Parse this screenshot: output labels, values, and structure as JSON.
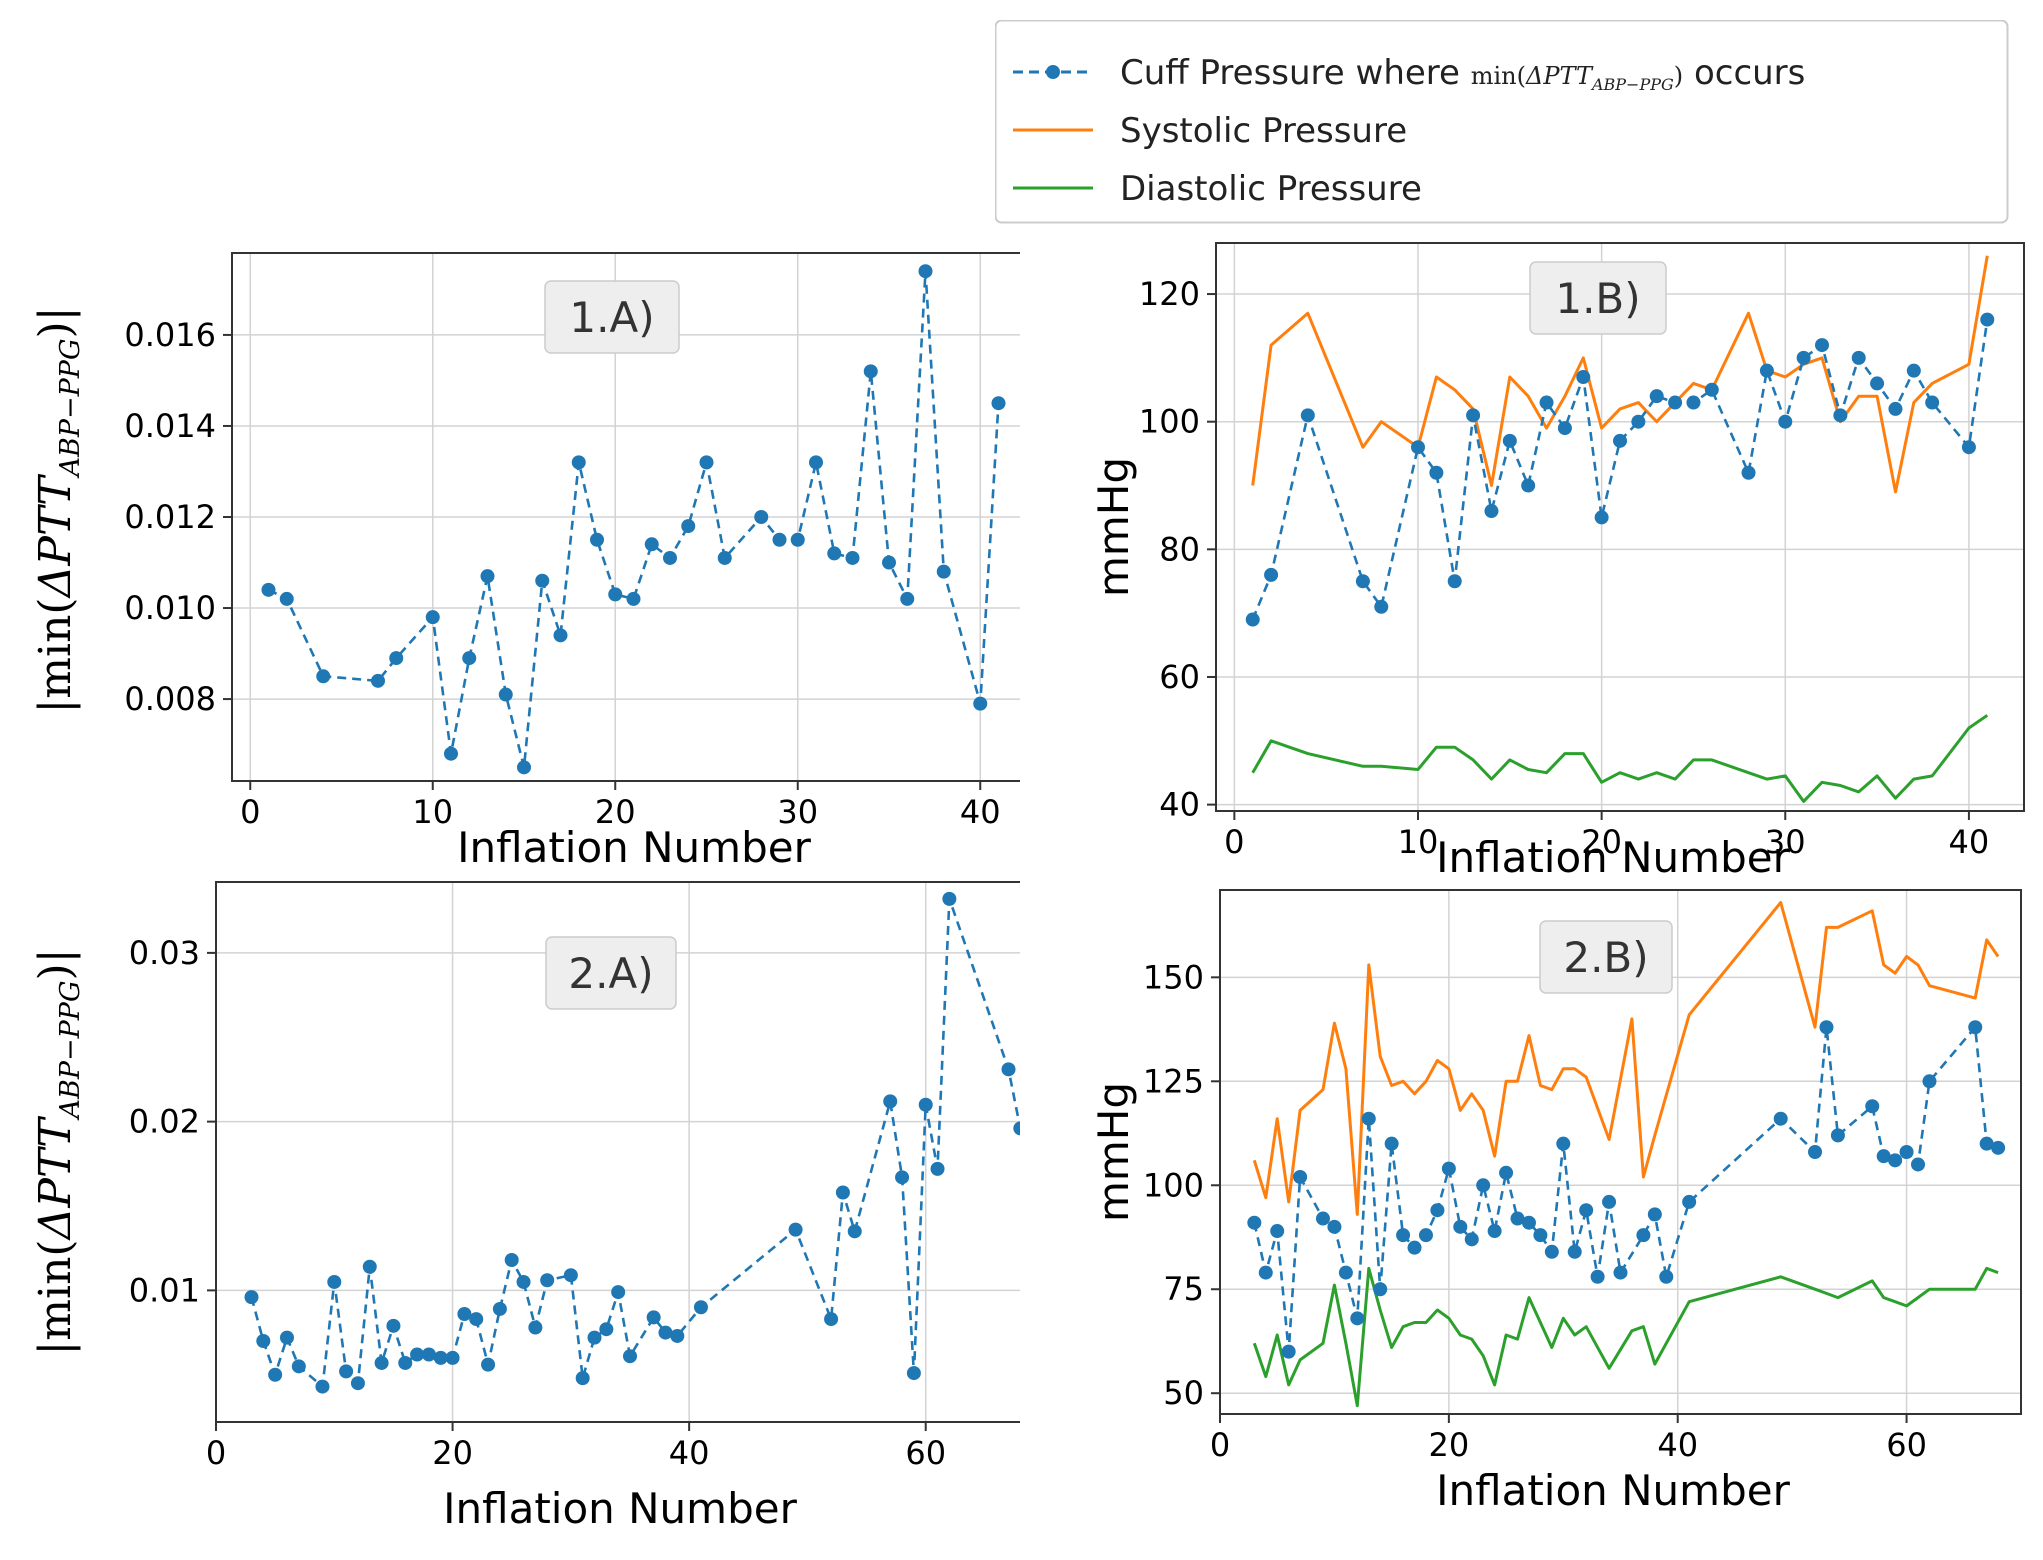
{
  "legend": {
    "cuff_prefix": "Cuff Pressure where ",
    "cuff_math": {
      "fn": "min(",
      "symbol": "ΔPTT",
      "sub": "ABP−PPG",
      "close": ")"
    },
    "cuff_suffix": " occurs",
    "systolic": "Systolic Pressure",
    "diastolic": "Diastolic Pressure"
  },
  "colors": {
    "cuff": "#1f77b4",
    "systolic": "#ff7f0e",
    "diastolic": "#2ca02c",
    "grid": "#d3d3d3",
    "axis": "#333333",
    "label_box": "#eeeeee"
  },
  "chart_data": [
    {
      "id": "1A",
      "type": "line",
      "panel_label": "1.A)",
      "xlabel": "Inflation Number",
      "ylabel": {
        "pre": "|min(",
        "symbol": "ΔPTT",
        "sub": "ABP−PPG",
        "post": ")|"
      },
      "xlim": [
        -1,
        43
      ],
      "ylim": [
        0.0062,
        0.0178
      ],
      "xticks": [
        0,
        10,
        20,
        30,
        40
      ],
      "xtick_labels": [
        "0",
        "10",
        "20",
        "30",
        "40"
      ],
      "yticks": [
        0.008,
        0.01,
        0.012,
        0.014,
        0.016
      ],
      "ytick_labels": [
        "0.008",
        "0.010",
        "0.012",
        "0.014",
        "0.016"
      ],
      "series": [
        {
          "name": "Cuff Pressure where min(ΔPTT_ABP−PPG) occurs",
          "style": "dashed-markers",
          "color_key": "cuff",
          "x": [
            1,
            2,
            4,
            7,
            8,
            10,
            11,
            12,
            13,
            14,
            15,
            16,
            17,
            18,
            19,
            20,
            21,
            22,
            23,
            24,
            25,
            26,
            28,
            29,
            30,
            31,
            32,
            33,
            34,
            35,
            36,
            37,
            38,
            40,
            41
          ],
          "y": [
            0.0104,
            0.0102,
            0.0085,
            0.0084,
            0.0089,
            0.0098,
            0.0068,
            0.0089,
            0.0107,
            0.0081,
            0.0065,
            0.0106,
            0.0094,
            0.0132,
            0.0115,
            0.0103,
            0.0102,
            0.0114,
            0.0111,
            0.0118,
            0.0132,
            0.0111,
            0.012,
            0.0115,
            0.0115,
            0.0132,
            0.0112,
            0.0111,
            0.0152,
            0.011,
            0.0102,
            0.0174,
            0.0108,
            0.0079,
            0.0145
          ]
        }
      ]
    },
    {
      "id": "1B",
      "type": "line",
      "panel_label": "1.B)",
      "xlabel": "Inflation Number",
      "ylabel_text": "mmHg",
      "xlim": [
        -1,
        43
      ],
      "ylim": [
        39,
        128
      ],
      "xticks": [
        0,
        10,
        20,
        30,
        40
      ],
      "xtick_labels": [
        "0",
        "10",
        "20",
        "30",
        "40"
      ],
      "yticks": [
        40,
        60,
        80,
        100,
        120
      ],
      "ytick_labels": [
        "40",
        "60",
        "80",
        "100",
        "120"
      ],
      "series": [
        {
          "name": "Systolic Pressure",
          "style": "solid",
          "color_key": "systolic",
          "x": [
            1,
            2,
            4,
            7,
            8,
            10,
            11,
            12,
            13,
            14,
            15,
            16,
            17,
            18,
            19,
            20,
            21,
            22,
            23,
            24,
            25,
            26,
            28,
            29,
            30,
            31,
            32,
            33,
            34,
            35,
            36,
            37,
            38,
            40,
            41
          ],
          "y": [
            90,
            112,
            117,
            96,
            100,
            96,
            107,
            105,
            102,
            90,
            107,
            104,
            99,
            104,
            110,
            99,
            102,
            103,
            100,
            103,
            106,
            105,
            117,
            108,
            107,
            109,
            110,
            100,
            104,
            104,
            89,
            103,
            106,
            109,
            126
          ]
        },
        {
          "name": "Diastolic Pressure",
          "style": "solid",
          "color_key": "diastolic",
          "x": [
            1,
            2,
            4,
            7,
            8,
            10,
            11,
            12,
            13,
            14,
            15,
            16,
            17,
            18,
            19,
            20,
            21,
            22,
            23,
            24,
            25,
            26,
            28,
            29,
            30,
            31,
            32,
            33,
            34,
            35,
            36,
            37,
            38,
            40,
            41
          ],
          "y": [
            45,
            50,
            48,
            46,
            46,
            45.5,
            49,
            49,
            47,
            44,
            47,
            45.5,
            45,
            48,
            48,
            43.5,
            45,
            44,
            45,
            44,
            47,
            47,
            45,
            44,
            44.5,
            40.5,
            43.5,
            43,
            42,
            44.5,
            41,
            44,
            44.5,
            52,
            54
          ]
        },
        {
          "name": "Cuff Pressure where min(ΔPTT_ABP−PPG) occurs",
          "style": "dashed-markers",
          "color_key": "cuff",
          "x": [
            1,
            2,
            4,
            7,
            8,
            10,
            11,
            12,
            13,
            14,
            15,
            16,
            17,
            18,
            19,
            20,
            21,
            22,
            23,
            24,
            25,
            26,
            28,
            29,
            30,
            31,
            32,
            33,
            34,
            35,
            36,
            37,
            38,
            40,
            41
          ],
          "y": [
            69,
            76,
            101,
            75,
            71,
            96,
            92,
            75,
            101,
            86,
            97,
            90,
            103,
            99,
            107,
            85,
            97,
            100,
            104,
            103,
            103,
            105,
            92,
            108,
            100,
            110,
            112,
            101,
            110,
            106,
            102,
            108,
            103,
            96,
            116
          ]
        }
      ]
    },
    {
      "id": "2A",
      "type": "line",
      "panel_label": "2.A)",
      "xlabel": "Inflation Number",
      "ylabel": {
        "pre": "|min(",
        "symbol": "ΔPTT",
        "sub": "ABP−PPG",
        "post": ")|"
      },
      "xlim": [
        0,
        70
      ],
      "ylim": [
        0.0022,
        0.0342
      ],
      "xticks": [
        0,
        20,
        40,
        60
      ],
      "xtick_labels": [
        "0",
        "20",
        "40",
        "60"
      ],
      "yticks": [
        0.01,
        0.02,
        0.03
      ],
      "ytick_labels": [
        "0.01",
        "0.02",
        "0.03"
      ],
      "series": [
        {
          "name": "Cuff Pressure where min(ΔPTT_ABP−PPG) occurs",
          "style": "dashed-markers",
          "color_key": "cuff",
          "x": [
            3,
            4,
            5,
            6,
            7,
            9,
            10,
            11,
            12,
            13,
            14,
            15,
            16,
            17,
            18,
            19,
            20,
            21,
            22,
            23,
            24,
            25,
            26,
            27,
            28,
            30,
            31,
            32,
            33,
            34,
            35,
            37,
            38,
            39,
            41,
            49,
            52,
            53,
            54,
            57,
            58,
            59,
            60,
            61,
            62,
            67,
            68
          ],
          "y": [
            0.0096,
            0.007,
            0.005,
            0.0072,
            0.0055,
            0.0043,
            0.0105,
            0.0052,
            0.0045,
            0.0114,
            0.0057,
            0.0079,
            0.0057,
            0.0062,
            0.0062,
            0.006,
            0.006,
            0.0086,
            0.0083,
            0.0056,
            0.0089,
            0.0118,
            0.0105,
            0.0078,
            0.0106,
            0.0109,
            0.0048,
            0.0072,
            0.0077,
            0.0099,
            0.0061,
            0.0084,
            0.0075,
            0.0073,
            0.009,
            0.0136,
            0.0083,
            0.0158,
            0.0135,
            0.0212,
            0.0167,
            0.0051,
            0.021,
            0.0172,
            0.0332,
            0.0231,
            0.0196
          ]
        }
      ]
    },
    {
      "id": "2B",
      "type": "line",
      "panel_label": "2.B)",
      "xlabel": "Inflation Number",
      "ylabel_text": "mmHg",
      "xlim": [
        0,
        70
      ],
      "ylim": [
        45,
        171
      ],
      "xticks": [
        0,
        20,
        40,
        60
      ],
      "xtick_labels": [
        "0",
        "20",
        "40",
        "60"
      ],
      "yticks": [
        50,
        75,
        100,
        125,
        150
      ],
      "ytick_labels": [
        "50",
        "75",
        "100",
        "125",
        "150"
      ],
      "series": [
        {
          "name": "Systolic Pressure",
          "style": "solid",
          "color_key": "systolic",
          "x": [
            3,
            4,
            5,
            6,
            7,
            9,
            10,
            11,
            12,
            13,
            14,
            15,
            16,
            17,
            18,
            19,
            20,
            21,
            22,
            23,
            24,
            25,
            26,
            27,
            28,
            29,
            30,
            31,
            32,
            34,
            36,
            37,
            38,
            41,
            49,
            52,
            53,
            54,
            57,
            58,
            59,
            60,
            61,
            62,
            66,
            67,
            68
          ],
          "y": [
            106,
            97,
            116,
            96,
            118,
            123,
            139,
            128,
            93,
            153,
            131,
            124,
            125,
            122,
            125,
            130,
            128,
            118,
            122,
            118,
            107,
            125,
            125,
            136,
            124,
            123,
            128,
            128,
            126,
            111,
            140,
            102,
            112,
            141,
            168,
            138,
            162,
            162,
            166,
            153,
            151,
            155,
            153,
            148,
            145,
            159,
            155
          ]
        },
        {
          "name": "Diastolic Pressure",
          "style": "solid",
          "color_key": "diastolic",
          "x": [
            3,
            4,
            5,
            6,
            7,
            9,
            10,
            11,
            12,
            13,
            14,
            15,
            16,
            17,
            18,
            19,
            20,
            21,
            22,
            23,
            24,
            25,
            26,
            27,
            28,
            29,
            30,
            31,
            32,
            34,
            36,
            37,
            38,
            41,
            49,
            52,
            53,
            54,
            57,
            58,
            59,
            60,
            61,
            62,
            66,
            67,
            68
          ],
          "y": [
            62,
            54,
            64,
            52,
            58,
            62,
            76,
            62,
            47,
            80,
            70,
            61,
            66,
            67,
            67,
            70,
            68,
            64,
            63,
            59,
            52,
            64,
            63,
            73,
            67,
            61,
            68,
            64,
            66,
            56,
            65,
            66,
            57,
            72,
            78,
            75,
            74,
            73,
            77,
            73,
            72,
            71,
            73,
            75,
            75,
            80,
            79
          ]
        },
        {
          "name": "Cuff Pressure where min(ΔPTT_ABP−PPG) occurs",
          "style": "dashed-markers",
          "color_key": "cuff",
          "x": [
            3,
            4,
            5,
            6,
            7,
            9,
            10,
            11,
            12,
            13,
            14,
            15,
            16,
            17,
            18,
            19,
            20,
            21,
            22,
            23,
            24,
            25,
            26,
            27,
            28,
            29,
            30,
            31,
            32,
            33,
            34,
            35,
            37,
            38,
            39,
            41,
            49,
            52,
            53,
            54,
            57,
            58,
            59,
            60,
            61,
            62,
            66,
            67,
            68
          ],
          "y": [
            91,
            79,
            89,
            60,
            102,
            92,
            90,
            79,
            68,
            116,
            75,
            110,
            88,
            85,
            88,
            94,
            104,
            90,
            87,
            100,
            89,
            103,
            92,
            91,
            88,
            84,
            110,
            84,
            94,
            78,
            96,
            79,
            88,
            93,
            78,
            96,
            116,
            108,
            138,
            112,
            119,
            107,
            106,
            108,
            105,
            125,
            138,
            110,
            109
          ]
        }
      ]
    }
  ]
}
